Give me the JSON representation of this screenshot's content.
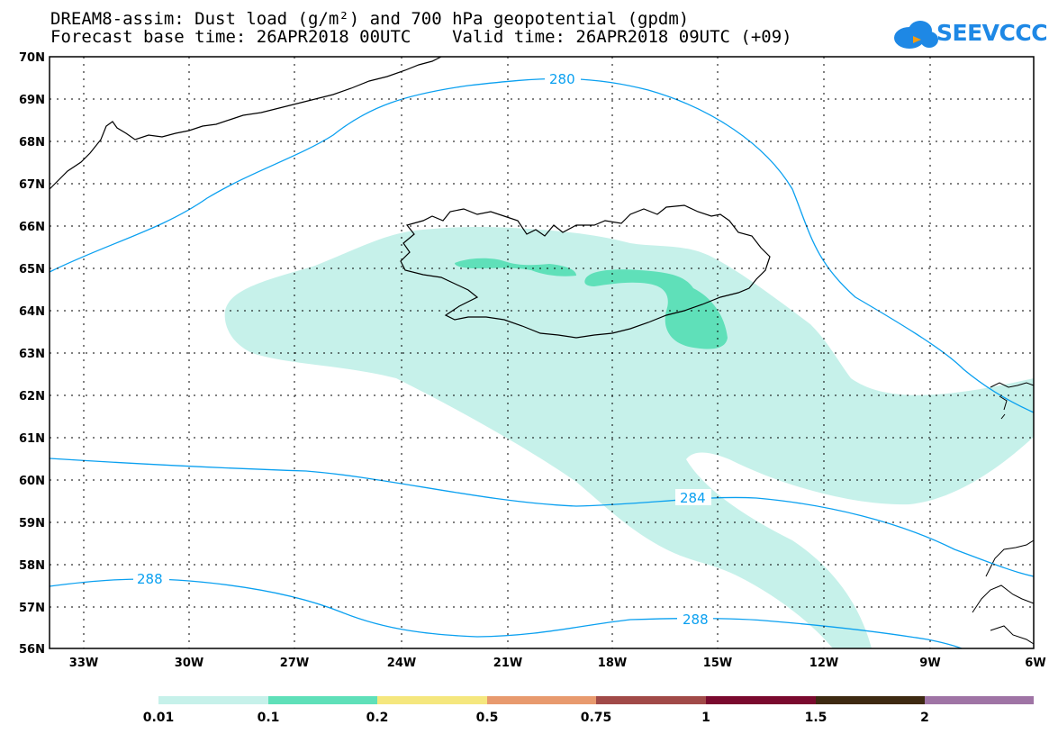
{
  "header": {
    "line1": "DREAM8-assim: Dust load (g/m²) and 700 hPa geopotential (gpdm)",
    "line2": "Forecast base time: 26APR2018 00UTC    Valid time: 26APR2018 09UTC (+09)"
  },
  "logo": {
    "text": "SEEVCCC",
    "color": "#1e88e5"
  },
  "map": {
    "lat_labels": [
      "70N",
      "69N",
      "68N",
      "67N",
      "66N",
      "65N",
      "64N",
      "63N",
      "62N",
      "61N",
      "60N",
      "59N",
      "58N",
      "57N",
      "56N"
    ],
    "lon_labels": [
      "33W",
      "30W",
      "27W",
      "24W",
      "21W",
      "18W",
      "15W",
      "12W",
      "9W",
      "6W"
    ],
    "contour_labels": [
      "280",
      "284",
      "288",
      "288"
    ],
    "contour_color": "#0aa0f0",
    "dust_colors": {
      "low": "#c6f1ea",
      "mid": "#5fe0b9"
    }
  },
  "colorbar": {
    "colors": [
      "#c6f1ea",
      "#5fe0b9",
      "#f5e77e",
      "#e89a6e",
      "#a14a48",
      "#7a0a2e",
      "#3e2a12",
      "#9f74a5"
    ],
    "tick_labels": [
      "0.01",
      "0.1",
      "0.2",
      "0.5",
      "0.75",
      "1",
      "1.5",
      "2"
    ]
  }
}
